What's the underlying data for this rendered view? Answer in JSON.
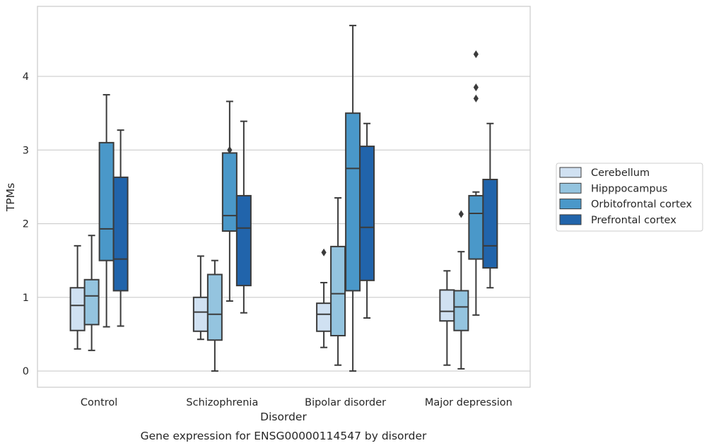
{
  "chart_data": {
    "type": "box",
    "caption": "Gene expression for ENSG00000114547 by disorder",
    "xlabel": "Disorder",
    "ylabel": "TPMs",
    "ylim": [
      -0.22,
      4.95
    ],
    "yticks": [
      "0",
      "1",
      "2",
      "3",
      "4"
    ],
    "grid": "horizontal",
    "legend_position": "right",
    "categories": [
      "Control",
      "Schizophrenia",
      "Bipolar disorder",
      "Major depression"
    ],
    "series": [
      {
        "name": "Cerebellum",
        "color": "#d0e1f2",
        "boxes": [
          {
            "whisker_low": 0.3,
            "q1": 0.55,
            "median": 0.89,
            "q3": 1.13,
            "whisker_high": 1.7,
            "outliers": []
          },
          {
            "whisker_low": 0.43,
            "q1": 0.54,
            "median": 0.8,
            "q3": 1.0,
            "whisker_high": 1.56,
            "outliers": []
          },
          {
            "whisker_low": 0.32,
            "q1": 0.54,
            "median": 0.77,
            "q3": 0.92,
            "whisker_high": 1.2,
            "outliers": [
              1.61
            ]
          },
          {
            "whisker_low": 0.08,
            "q1": 0.68,
            "median": 0.81,
            "q3": 1.1,
            "whisker_high": 1.36,
            "outliers": []
          }
        ]
      },
      {
        "name": "Hipppocampus",
        "color": "#94c4df",
        "boxes": [
          {
            "whisker_low": 0.28,
            "q1": 0.63,
            "median": 1.02,
            "q3": 1.24,
            "whisker_high": 1.84,
            "outliers": []
          },
          {
            "whisker_low": 0.0,
            "q1": 0.42,
            "median": 0.77,
            "q3": 1.31,
            "whisker_high": 1.5,
            "outliers": []
          },
          {
            "whisker_low": 0.08,
            "q1": 0.48,
            "median": 1.05,
            "q3": 1.69,
            "whisker_high": 2.35,
            "outliers": []
          },
          {
            "whisker_low": 0.03,
            "q1": 0.55,
            "median": 0.87,
            "q3": 1.09,
            "whisker_high": 1.62,
            "outliers": [
              2.13
            ]
          }
        ]
      },
      {
        "name": "Orbitofrontal cortex",
        "color": "#4a98c9",
        "boxes": [
          {
            "whisker_low": 0.6,
            "q1": 1.5,
            "median": 1.93,
            "q3": 3.1,
            "whisker_high": 3.75,
            "outliers": []
          },
          {
            "whisker_low": 0.95,
            "q1": 1.9,
            "median": 2.11,
            "q3": 2.96,
            "whisker_high": 3.66,
            "outliers": [
              3.0
            ]
          },
          {
            "whisker_low": 0.0,
            "q1": 1.09,
            "median": 2.75,
            "q3": 3.5,
            "whisker_high": 4.69,
            "outliers": []
          },
          {
            "whisker_low": 0.76,
            "q1": 1.52,
            "median": 2.14,
            "q3": 2.38,
            "whisker_high": 2.43,
            "outliers": [
              3.7,
              3.85,
              4.3
            ]
          }
        ]
      },
      {
        "name": "Prefrontal cortex",
        "color": "#2164ab",
        "boxes": [
          {
            "whisker_low": 0.61,
            "q1": 1.09,
            "median": 1.52,
            "q3": 2.63,
            "whisker_high": 3.27,
            "outliers": []
          },
          {
            "whisker_low": 0.79,
            "q1": 1.16,
            "median": 1.94,
            "q3": 2.38,
            "whisker_high": 3.39,
            "outliers": []
          },
          {
            "whisker_low": 0.72,
            "q1": 1.23,
            "median": 1.95,
            "q3": 3.05,
            "whisker_high": 3.36,
            "outliers": []
          },
          {
            "whisker_low": 1.13,
            "q1": 1.4,
            "median": 1.7,
            "q3": 2.6,
            "whisker_high": 3.36,
            "outliers": []
          }
        ]
      }
    ]
  }
}
